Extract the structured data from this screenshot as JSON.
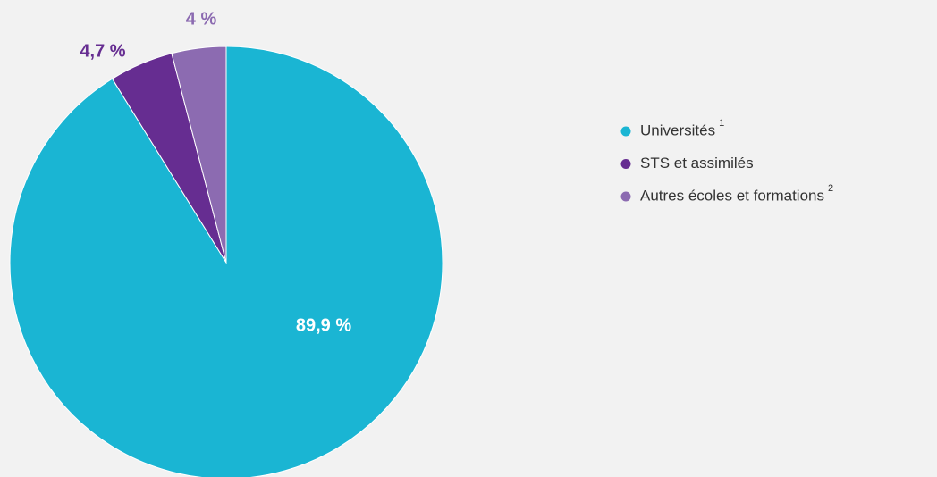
{
  "chart_data": {
    "type": "pie",
    "categories": [
      "Universités",
      "STS et assimilés",
      "Autres écoles et formations"
    ],
    "legend_notes": [
      "1",
      null,
      "2"
    ],
    "values": [
      89.9,
      4.7,
      4
    ],
    "value_labels": [
      "89,9 %",
      "4,7 %",
      "4 %"
    ],
    "colors": [
      "#1ab5d3",
      "#662d91",
      "#8c6bb1"
    ],
    "label_colors": [
      "#ffffff",
      "#662d91",
      "#8c6bb1"
    ],
    "legend": "right"
  }
}
